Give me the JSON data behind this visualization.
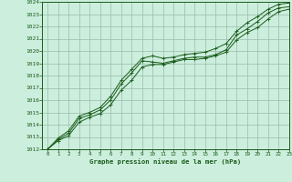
{
  "xlabel": "Graphe pression niveau de la mer (hPa)",
  "bg_color": "#cceedd",
  "grid_color": "#99bbaa",
  "line_color": "#1a5c1a",
  "xlim": [
    -0.5,
    23
  ],
  "ylim": [
    1012,
    1024
  ],
  "yticks": [
    1012,
    1013,
    1014,
    1015,
    1016,
    1017,
    1018,
    1019,
    1020,
    1021,
    1022,
    1023,
    1024
  ],
  "xticks": [
    0,
    1,
    2,
    3,
    4,
    5,
    6,
    7,
    8,
    9,
    10,
    11,
    12,
    13,
    14,
    15,
    16,
    17,
    18,
    19,
    20,
    21,
    22,
    23
  ],
  "series": [
    [
      1012.0,
      1012.8,
      1013.3,
      1014.5,
      1014.8,
      1015.2,
      1016.0,
      1017.3,
      1018.2,
      1019.2,
      1019.1,
      1019.0,
      1019.2,
      1019.4,
      1019.5,
      1019.5,
      1019.7,
      1020.1,
      1021.3,
      1021.8,
      1022.4,
      1023.1,
      1023.5,
      1023.6
    ],
    [
      1012.0,
      1012.7,
      1013.1,
      1014.2,
      1014.6,
      1014.9,
      1015.6,
      1016.8,
      1017.6,
      1018.7,
      1018.9,
      1018.9,
      1019.1,
      1019.3,
      1019.3,
      1019.4,
      1019.6,
      1019.9,
      1020.9,
      1021.5,
      1021.9,
      1022.6,
      1023.2,
      1023.4
    ],
    [
      1012.0,
      1012.9,
      1013.5,
      1014.7,
      1015.0,
      1015.4,
      1016.3,
      1017.6,
      1018.5,
      1019.4,
      1019.6,
      1019.4,
      1019.5,
      1019.7,
      1019.8,
      1019.9,
      1020.2,
      1020.6,
      1021.6,
      1022.3,
      1022.8,
      1023.4,
      1023.8,
      1023.9
    ]
  ]
}
